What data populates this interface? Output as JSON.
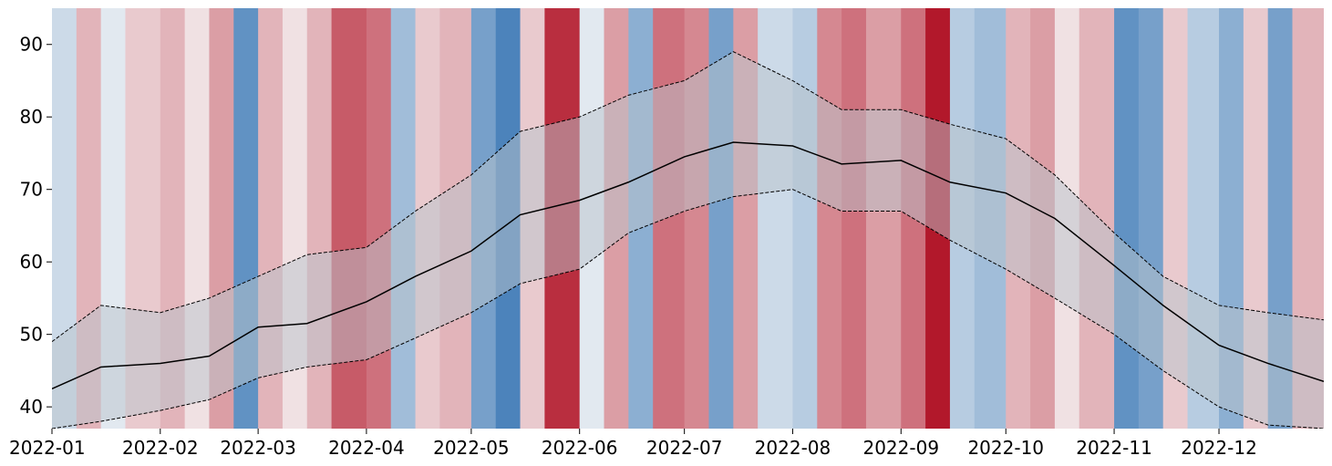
{
  "chart_data": {
    "type": "line",
    "title": "",
    "xlabel": "",
    "ylabel": "",
    "xlim": [
      "2022-01-01",
      "2022-12-31"
    ],
    "ylim": [
      37,
      95
    ],
    "grid": false,
    "legend": "none",
    "xticks": [
      "2022-01",
      "2022-02",
      "2022-03",
      "2022-04",
      "2022-05",
      "2022-06",
      "2022-07",
      "2022-08",
      "2022-09",
      "2022-10",
      "2022-11",
      "2022-12"
    ],
    "yticks": [
      40,
      50,
      60,
      70,
      80,
      90
    ],
    "colors": {
      "mean_line": "#000000",
      "band_fill": "#b9c4cc",
      "stripe_cold": "#2166ac",
      "stripe_neutral": "#f7f7f7",
      "stripe_hot": "#b2182b"
    },
    "x": [
      "2022-01-01",
      "2022-01-15",
      "2022-02-01",
      "2022-02-15",
      "2022-03-01",
      "2022-03-15",
      "2022-04-01",
      "2022-04-15",
      "2022-05-01",
      "2022-05-15",
      "2022-06-01",
      "2022-06-15",
      "2022-07-01",
      "2022-07-15",
      "2022-08-01",
      "2022-08-15",
      "2022-09-01",
      "2022-09-15",
      "2022-10-01",
      "2022-10-15",
      "2022-11-01",
      "2022-11-15",
      "2022-12-01",
      "2022-12-15",
      "2022-12-31"
    ],
    "series": [
      {
        "role": "mean",
        "style": "solid",
        "values": [
          42.5,
          45.5,
          46.0,
          47.0,
          51.0,
          51.5,
          54.5,
          58.0,
          61.5,
          66.5,
          68.5,
          71.0,
          74.5,
          76.5,
          76.0,
          73.5,
          74.0,
          71.0,
          69.5,
          66.0,
          59.5,
          54.0,
          48.5,
          46.0,
          43.5
        ]
      },
      {
        "role": "upper",
        "style": "dashed",
        "values": [
          49.0,
          54.0,
          53.0,
          55.0,
          58.0,
          61.0,
          62.0,
          67.0,
          72.0,
          78.0,
          80.0,
          83.0,
          85.0,
          89.0,
          85.0,
          81.0,
          81.0,
          79.0,
          77.0,
          72.0,
          64.0,
          58.0,
          54.0,
          53.0,
          52.0
        ]
      },
      {
        "role": "lower",
        "style": "dashed",
        "values": [
          37.0,
          38.0,
          39.5,
          41.0,
          44.0,
          45.5,
          46.5,
          49.5,
          53.0,
          57.0,
          59.0,
          64.0,
          67.0,
          69.0,
          70.0,
          67.0,
          67.0,
          63.0,
          59.0,
          55.0,
          50.0,
          45.0,
          40.0,
          37.5,
          37.0
        ]
      }
    ],
    "stripes": {
      "x": [
        "2022-01-01",
        "2022-01-08",
        "2022-01-15",
        "2022-01-22",
        "2022-02-01",
        "2022-02-08",
        "2022-02-15",
        "2022-02-22",
        "2022-03-01",
        "2022-03-08",
        "2022-03-15",
        "2022-03-22",
        "2022-04-01",
        "2022-04-08",
        "2022-04-15",
        "2022-04-22",
        "2022-05-01",
        "2022-05-08",
        "2022-05-15",
        "2022-05-22",
        "2022-06-01",
        "2022-06-08",
        "2022-06-15",
        "2022-06-22",
        "2022-07-01",
        "2022-07-08",
        "2022-07-15",
        "2022-07-22",
        "2022-08-01",
        "2022-08-08",
        "2022-08-15",
        "2022-08-22",
        "2022-09-01",
        "2022-09-08",
        "2022-09-15",
        "2022-09-22",
        "2022-10-01",
        "2022-10-08",
        "2022-10-15",
        "2022-10-22",
        "2022-11-01",
        "2022-11-08",
        "2022-11-15",
        "2022-11-22",
        "2022-12-01",
        "2022-12-08",
        "2022-12-15",
        "2022-12-22"
      ],
      "anomaly": [
        -0.2,
        0.3,
        -0.1,
        0.2,
        0.3,
        0.1,
        0.4,
        -0.7,
        0.3,
        0.1,
        0.3,
        0.7,
        0.6,
        -0.4,
        0.2,
        0.3,
        -0.6,
        -0.8,
        0.2,
        0.9,
        -0.1,
        0.4,
        -0.5,
        0.6,
        0.5,
        -0.6,
        0.4,
        -0.2,
        -0.3,
        0.5,
        0.6,
        0.4,
        0.6,
        1.0,
        -0.3,
        -0.4,
        0.3,
        0.4,
        0.1,
        0.3,
        -0.7,
        -0.6,
        0.2,
        -0.3,
        -0.5,
        0.2,
        -0.6,
        0.3
      ]
    }
  }
}
